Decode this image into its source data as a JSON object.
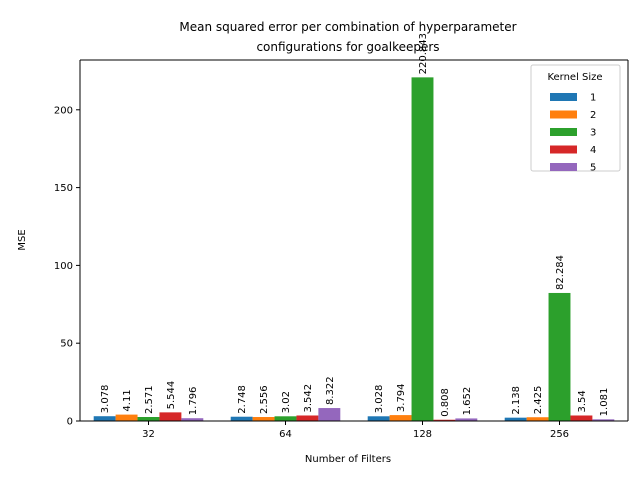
{
  "chart_data": {
    "type": "bar",
    "title": [
      "Mean squared error per combination of hyperparameter",
      "configurations for goalkeepers"
    ],
    "xlabel": "Number of Filters",
    "ylabel": "MSE",
    "categories": [
      "32",
      "64",
      "128",
      "256"
    ],
    "legend_title": "Kernel Size",
    "legend_position": "top-right",
    "ylim": [
      0,
      232
    ],
    "yticks": [
      0,
      50,
      100,
      150,
      200
    ],
    "grid": false,
    "series": [
      {
        "name": "1",
        "color": "#1f77b4",
        "values": [
          3.078,
          2.748,
          3.028,
          2.138
        ],
        "labels": [
          "3.078",
          "2.748",
          "3.028",
          "2.138"
        ]
      },
      {
        "name": "2",
        "color": "#ff7f0e",
        "values": [
          4.11,
          2.556,
          3.794,
          2.425
        ],
        "labels": [
          "4.11",
          "2.556",
          "3.794",
          "2.425"
        ]
      },
      {
        "name": "3",
        "color": "#2ca02c",
        "values": [
          2.571,
          3.02,
          220.843,
          82.284
        ],
        "labels": [
          "2.571",
          "3.02",
          "220.843",
          "82.284"
        ]
      },
      {
        "name": "4",
        "color": "#d62728",
        "values": [
          5.544,
          3.542,
          0.808,
          3.54
        ],
        "labels": [
          "5.544",
          "3.542",
          "0.808",
          "3.54"
        ]
      },
      {
        "name": "5",
        "color": "#9467bd",
        "values": [
          1.796,
          8.322,
          1.652,
          1.081
        ],
        "labels": [
          "1.796",
          "8.322",
          "1.652",
          "1.081"
        ]
      }
    ]
  }
}
